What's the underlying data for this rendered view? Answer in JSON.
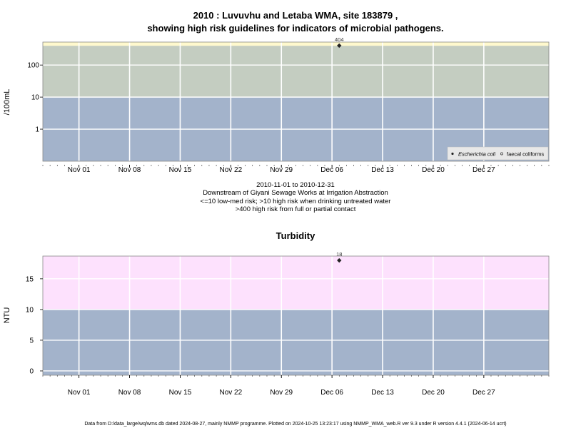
{
  "chart_data": [
    {
      "type": "scatter",
      "title_line1": "2010 : Luvuvhu and Letaba WMA, site 183879 ,",
      "title_line2": "showing high risk guidelines for indicators of microbial pathogens.",
      "ylabel": "/100mL",
      "y_scale": "log",
      "y_ticks": [
        1,
        10,
        100
      ],
      "y_tick_labels": [
        "1",
        "10",
        "100"
      ],
      "ylim": [
        0.1,
        520
      ],
      "xlim": [
        "2010-10-27",
        "2011-01-05"
      ],
      "x_ticks": [
        "2010-11-01",
        "2010-11-08",
        "2010-11-15",
        "2010-11-22",
        "2010-11-29",
        "2010-12-06",
        "2010-12-13",
        "2010-12-20",
        "2010-12-27"
      ],
      "x_tick_labels": [
        "Nov 01",
        "Nov 08",
        "Nov 15",
        "Nov 22",
        "Nov 29",
        "Dec 06",
        "Dec 13",
        "Dec 20",
        "Dec 27"
      ],
      "bands": [
        {
          "from": 0.1,
          "to": 10,
          "color": "#a3b3cb"
        },
        {
          "from": 10,
          "to": 400,
          "color": "#c4cdc1"
        },
        {
          "from": 400,
          "to": 520,
          "color": "#fff9cd"
        }
      ],
      "series": [
        {
          "name": "Escherichia coli",
          "points": [
            {
              "x": "2010-12-07",
              "y": 404,
              "label": "404"
            }
          ]
        },
        {
          "name": "faecal coliforms",
          "points": []
        }
      ],
      "legend_position": "bottom-right",
      "grid": true,
      "caption": [
        "2010-11-01 to 2010-12-31",
        "Downstream of Giyani Sewage Works at Irrigation Abstraction",
        "<=10 low-med risk; >10 high risk when drinking untreated water",
        ">400 high risk from full or partial contact"
      ]
    },
    {
      "type": "scatter",
      "title": "Turbidity",
      "ylabel": "NTU",
      "ylim": [
        -0.7,
        18.7
      ],
      "y_ticks": [
        0,
        5,
        10,
        15
      ],
      "y_tick_labels": [
        "0",
        "5",
        "10",
        "15"
      ],
      "xlim": [
        "2010-10-27",
        "2011-01-05"
      ],
      "x_ticks": [
        "2010-11-01",
        "2010-11-08",
        "2010-11-15",
        "2010-11-22",
        "2010-11-29",
        "2010-12-06",
        "2010-12-13",
        "2010-12-20",
        "2010-12-27"
      ],
      "x_tick_labels": [
        "Nov 01",
        "Nov 08",
        "Nov 15",
        "Nov 22",
        "Nov 29",
        "Dec 06",
        "Dec 13",
        "Dec 20",
        "Dec 27"
      ],
      "bands": [
        {
          "from": -0.7,
          "to": 10,
          "color": "#a3b3cb"
        },
        {
          "from": 10,
          "to": 18.7,
          "color": "#fde1fd"
        }
      ],
      "series": [
        {
          "points": [
            {
              "x": "2010-12-07",
              "y": 18,
              "label": "18"
            }
          ]
        }
      ],
      "grid": true
    }
  ],
  "footer": "Data from D:/data_large/wq/wms.db dated 2024-08-27, mainly NMMP programme. Plotted on 2024-10-25 13:23:17 using NMMP_WMA_web.R ver 9.3 under R version 4.4.1 (2024-06-14 ucrt)"
}
